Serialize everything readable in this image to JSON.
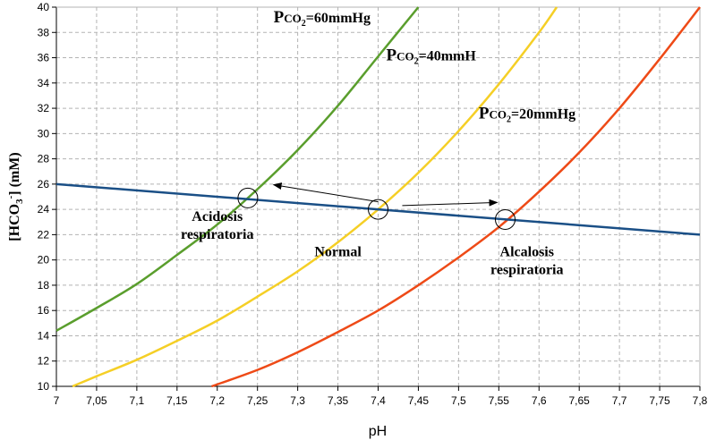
{
  "chart_data": {
    "type": "line",
    "title": "",
    "xlabel": "pH",
    "ylabel": {
      "pre": "[HCO",
      "sub": "3",
      "sup": "-",
      "post": "] (mM)"
    },
    "xlim": [
      7,
      7.8
    ],
    "ylim": [
      10,
      40
    ],
    "grid": true,
    "x_ticks": [
      7,
      7.05,
      7.1,
      7.15,
      7.2,
      7.25,
      7.3,
      7.35,
      7.4,
      7.45,
      7.5,
      7.55,
      7.6,
      7.65,
      7.7,
      7.75,
      7.8
    ],
    "x_tick_labels": [
      "7",
      "7,05",
      "7,1",
      "7,15",
      "7,2",
      "7,25",
      "7,3",
      "7,35",
      "7,4",
      "7,45",
      "7,5",
      "7,55",
      "7,6",
      "7,65",
      "7,7",
      "7,75",
      "7,8"
    ],
    "y_ticks": [
      10,
      12,
      14,
      16,
      18,
      20,
      22,
      24,
      26,
      28,
      30,
      32,
      34,
      36,
      38,
      40
    ],
    "y_tick_labels": [
      "10",
      "12",
      "14",
      "16",
      "18",
      "20",
      "22",
      "24",
      "26",
      "28",
      "30",
      "32",
      "34",
      "36",
      "38",
      "40"
    ],
    "series": [
      {
        "key": "pco2_60",
        "color": "#5a9e2d",
        "x": [
          7.0,
          7.05,
          7.1,
          7.15,
          7.2,
          7.25,
          7.3,
          7.35,
          7.4,
          7.45
        ],
        "y": [
          14.4,
          16.2,
          18.1,
          20.4,
          22.8,
          25.6,
          28.7,
          32.2,
          36.1,
          40.0
        ]
      },
      {
        "key": "pco2_40",
        "color": "#f5cf26",
        "x": [
          7.02,
          7.05,
          7.1,
          7.15,
          7.2,
          7.25,
          7.3,
          7.35,
          7.4,
          7.45,
          7.5,
          7.55,
          7.6,
          7.622
        ],
        "y": [
          10.0,
          10.8,
          12.1,
          13.6,
          15.2,
          17.1,
          19.1,
          21.4,
          24.0,
          26.9,
          30.2,
          33.9,
          38.0,
          40.0
        ]
      },
      {
        "key": "pco2_20",
        "color": "#ee4a17",
        "x": [
          7.193,
          7.25,
          7.3,
          7.35,
          7.4,
          7.45,
          7.5,
          7.55,
          7.6,
          7.65,
          7.7,
          7.75,
          7.8
        ],
        "y": [
          10.0,
          11.3,
          12.7,
          14.3,
          16.0,
          18.0,
          20.2,
          22.6,
          25.4,
          28.5,
          32.0,
          35.9,
          40.0
        ]
      },
      {
        "key": "buffer_line",
        "color": "#1a4f86",
        "x": [
          7.0,
          7.8
        ],
        "y": [
          26.0,
          22.0
        ]
      }
    ],
    "points": [
      {
        "key": "acidosis",
        "x": 7.238,
        "y": 24.9
      },
      {
        "key": "normal",
        "x": 7.4,
        "y": 24.0
      },
      {
        "key": "alcalosis",
        "x": 7.558,
        "y": 23.2
      }
    ],
    "arrows": [
      {
        "from": [
          7.4,
          24.6
        ],
        "to": [
          7.27,
          25.95
        ]
      },
      {
        "from": [
          7.43,
          24.3
        ],
        "to": [
          7.548,
          24.55
        ]
      }
    ],
    "annotations": [
      {
        "key": "label_pco2_60",
        "p": "P",
        "co": "CO",
        "sub": "2",
        "rest": "=60mmHg",
        "x": 7.27,
        "y": 38.8
      },
      {
        "key": "label_pco2_40",
        "p": "P",
        "co": "CO",
        "sub": "2",
        "rest": "=40mmH",
        "x": 7.41,
        "y": 35.8
      },
      {
        "key": "label_pco2_20",
        "p": "P",
        "co": "CO",
        "sub": "2",
        "rest": "=20mmHg",
        "x": 7.525,
        "y": 31.2
      },
      {
        "key": "label_acidosis",
        "lines": [
          "Acidosis",
          "respiratoria"
        ],
        "x": 7.2,
        "y": 23.1
      },
      {
        "key": "label_normal",
        "lines": [
          "Normal"
        ],
        "x": 7.35,
        "y": 20.3
      },
      {
        "key": "label_alcalosis",
        "lines": [
          "Alcalosis",
          "respiratoria"
        ],
        "x": 7.585,
        "y": 20.3
      }
    ]
  }
}
